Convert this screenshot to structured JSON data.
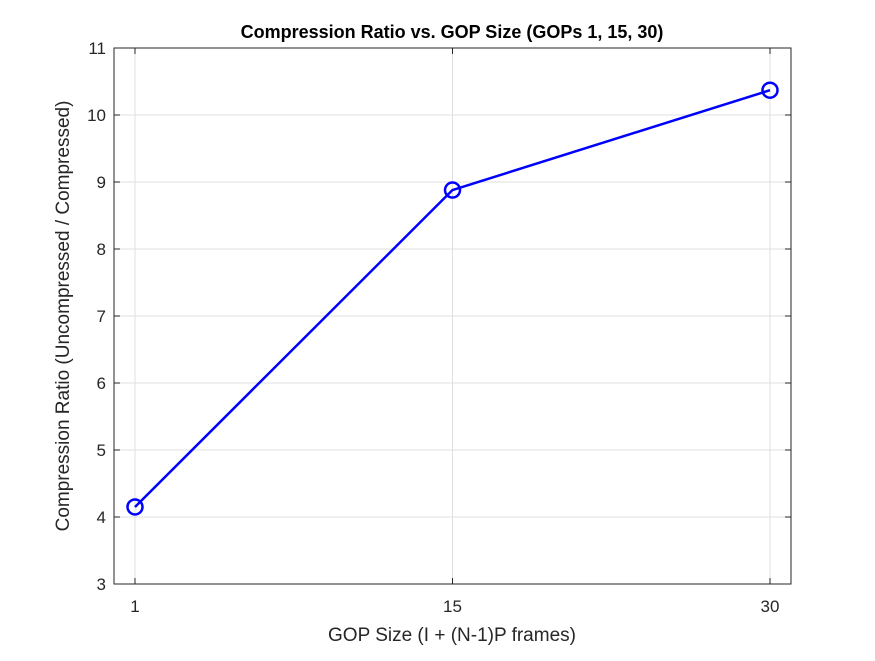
{
  "chart_data": {
    "type": "line",
    "title": "Compression Ratio vs. GOP Size (GOPs 1, 15, 30)",
    "xlabel": "GOP Size (I + (N-1)P frames)",
    "ylabel": "Compression Ratio (Uncompressed / Compressed)",
    "x": [
      1,
      15,
      30
    ],
    "x_tick_labels": [
      "1",
      "15",
      "30"
    ],
    "y_ticks": [
      3,
      4,
      5,
      6,
      7,
      8,
      9,
      10,
      11
    ],
    "ylim": [
      3,
      11
    ],
    "grid": true,
    "series": [
      {
        "values": [
          4.15,
          8.88,
          10.37
        ],
        "color": "#0000ff",
        "marker": "circle-open"
      }
    ]
  }
}
